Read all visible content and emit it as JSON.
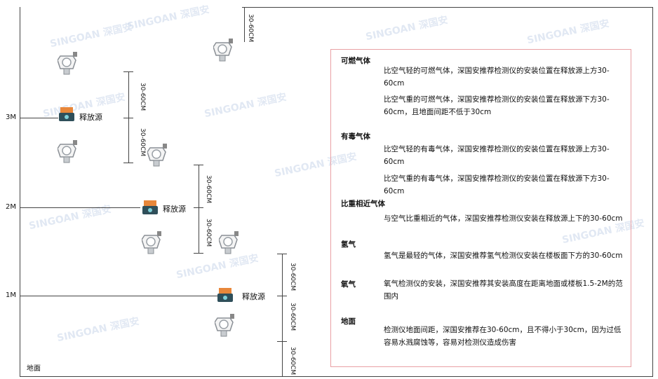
{
  "watermark": "SINGOAN 深国安",
  "levels": {
    "m3": "3M",
    "m2": "2M",
    "m1": "1M",
    "ground": "地面"
  },
  "dimension_label": "30-60CM",
  "source_label": "释放源",
  "colors": {
    "panel_border": "#e9a0a4",
    "source_box": "#e8873a",
    "source_base": "#2f4f5a",
    "detector": "#9aa0a6"
  },
  "panel": {
    "sections": [
      {
        "heading": "可燃气体",
        "paragraphs": [
          "比空气轻的可燃气体，深国安推荐检测仪的安装位置在释放源上方30-60cm",
          "比空气重的可燃气体，深国安推荐检测仪的安装位置在释放源下方30-60cm，且地面间距不低于30cm"
        ]
      },
      {
        "heading": "有毒气体",
        "paragraphs": [
          "比空气轻的有毒气体，深国安推荐检测仪的安装位置在释放源上方30-60cm",
          "比空气重的有毒气体，深国安推荐检测仪的安装位置在释放源下方30-60cm"
        ]
      },
      {
        "heading": "比重相近气体",
        "paragraphs": [
          "与空气比重相近的气体，深国安推荐检测仪安装在释放源上下的30-60cm"
        ]
      },
      {
        "heading": "氢气",
        "paragraphs": [
          "氢气是最轻的气体，深国安推荐氢气检测仪安装在楼板面下方的30-60cm"
        ]
      },
      {
        "heading": "氧气",
        "paragraphs": [
          "氧气检测仪的安装，深国安推荐其安装高度在距离地面或楼板1.5-2M的范围内"
        ]
      },
      {
        "heading": "地面",
        "paragraphs": [
          "检测仪地面间距，深国安推荐在30-60cm，且不得小于30cm，因为过低容易水溅腐蚀等，容易对检测仪造成伤害"
        ]
      }
    ]
  }
}
